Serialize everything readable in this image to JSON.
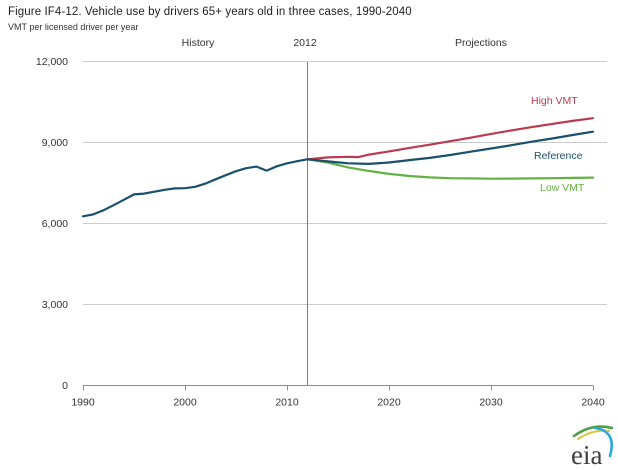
{
  "chart_data": {
    "type": "line",
    "title": "Figure IF4-12. Vehicle use by drivers 65+ years old in three cases, 1990-2040",
    "ylabel": "VMT per licensed driver per year",
    "x_axis": {
      "range": [
        1990,
        2040
      ],
      "ticks": [
        1990,
        2000,
        2010,
        2020,
        2030,
        2040
      ]
    },
    "y_axis": {
      "range": [
        0,
        12000
      ],
      "ticks": [
        0,
        3000,
        6000,
        9000,
        12000
      ],
      "tick_labels": [
        "0",
        "3,000",
        "6,000",
        "9,000",
        "12,000"
      ],
      "grid": true
    },
    "annotations": {
      "history": "History",
      "divider": "2012",
      "divider_year": 2012,
      "projections": "Projections"
    },
    "colors": {
      "grid": "#cbcbcb",
      "axis": "#8c8c8c",
      "divider": "#7d7d7d",
      "text": "#333333"
    },
    "series": [
      {
        "name": "History",
        "label": "",
        "color": "#19506c",
        "points": [
          [
            1990,
            6250
          ],
          [
            1991,
            6320
          ],
          [
            1992,
            6470
          ],
          [
            1993,
            6660
          ],
          [
            1994,
            6860
          ],
          [
            1995,
            7060
          ],
          [
            1996,
            7090
          ],
          [
            1997,
            7160
          ],
          [
            1998,
            7230
          ],
          [
            1999,
            7280
          ],
          [
            2000,
            7290
          ],
          [
            2001,
            7340
          ],
          [
            2002,
            7460
          ],
          [
            2003,
            7620
          ],
          [
            2004,
            7770
          ],
          [
            2005,
            7920
          ],
          [
            2006,
            8030
          ],
          [
            2007,
            8090
          ],
          [
            2008,
            7940
          ],
          [
            2009,
            8100
          ],
          [
            2010,
            8210
          ],
          [
            2011,
            8290
          ],
          [
            2012,
            8360
          ]
        ]
      },
      {
        "name": "High VMT",
        "label": "High VMT",
        "color": "#bb3a4d",
        "points": [
          [
            2012,
            8360
          ],
          [
            2014,
            8430
          ],
          [
            2016,
            8450
          ],
          [
            2017,
            8440
          ],
          [
            2018,
            8530
          ],
          [
            2020,
            8650
          ],
          [
            2022,
            8780
          ],
          [
            2024,
            8900
          ],
          [
            2026,
            9030
          ],
          [
            2028,
            9160
          ],
          [
            2030,
            9300
          ],
          [
            2032,
            9430
          ],
          [
            2034,
            9550
          ],
          [
            2036,
            9670
          ],
          [
            2038,
            9780
          ],
          [
            2040,
            9880
          ]
        ]
      },
      {
        "name": "Reference",
        "label": "Reference",
        "color": "#19506c",
        "points": [
          [
            2012,
            8360
          ],
          [
            2014,
            8280
          ],
          [
            2016,
            8210
          ],
          [
            2018,
            8190
          ],
          [
            2020,
            8240
          ],
          [
            2022,
            8330
          ],
          [
            2024,
            8410
          ],
          [
            2026,
            8520
          ],
          [
            2028,
            8640
          ],
          [
            2030,
            8760
          ],
          [
            2032,
            8880
          ],
          [
            2034,
            9010
          ],
          [
            2036,
            9130
          ],
          [
            2038,
            9260
          ],
          [
            2040,
            9380
          ]
        ]
      },
      {
        "name": "Low VMT",
        "label": "Low VMT",
        "color": "#63b144",
        "points": [
          [
            2012,
            8360
          ],
          [
            2014,
            8240
          ],
          [
            2016,
            8060
          ],
          [
            2018,
            7930
          ],
          [
            2020,
            7820
          ],
          [
            2022,
            7740
          ],
          [
            2024,
            7690
          ],
          [
            2026,
            7660
          ],
          [
            2028,
            7650
          ],
          [
            2030,
            7640
          ],
          [
            2032,
            7645
          ],
          [
            2034,
            7650
          ],
          [
            2036,
            7660
          ],
          [
            2038,
            7670
          ],
          [
            2040,
            7680
          ]
        ]
      }
    ]
  },
  "logo": {
    "text": "eia",
    "text_color": "#3f3f3f",
    "arc_green": "#4ba145",
    "arc_yellow": "#d9ca41",
    "arc_blue": "#2aa8df"
  }
}
